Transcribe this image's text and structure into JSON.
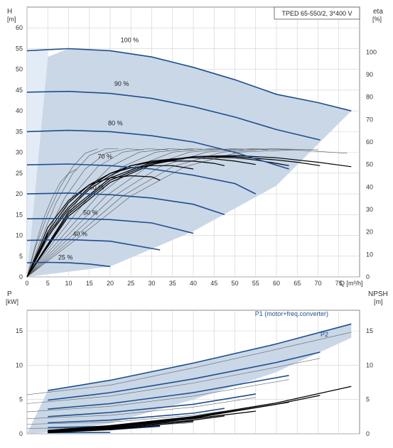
{
  "chart_data": [
    {
      "type": "line",
      "id": "head-chart",
      "title_box": "TPED 65-550/2, 3*400 V",
      "y_left_label": "H",
      "y_left_unit": "[m]",
      "y_right_label": "eta",
      "y_right_unit": "[%]",
      "x_label": "Q [m³/h]",
      "xlim": [
        0,
        80
      ],
      "ylim": [
        0,
        65
      ],
      "y_right_lim": [
        0,
        120
      ],
      "x_ticks": [
        0,
        5,
        10,
        15,
        20,
        25,
        30,
        35,
        40,
        45,
        50,
        55,
        60,
        65,
        70,
        75
      ],
      "y_ticks": [
        0,
        5,
        10,
        15,
        20,
        25,
        30,
        35,
        40,
        45,
        50,
        55,
        60
      ],
      "y_right_ticks": [
        0,
        10,
        20,
        30,
        40,
        50,
        60,
        70,
        80,
        90,
        100
      ],
      "grid": true,
      "colors": {
        "curve": "#1f4e8c",
        "area": "#c9d7e7",
        "area_light": "#e3ecf6",
        "efficiency": "#000000",
        "grid": "#d0d0d0"
      },
      "speed_curves": [
        {
          "label": "100 %",
          "label_q": 22.5,
          "label_h": 56.5,
          "q": [
            0,
            10,
            20,
            30,
            40,
            50,
            60,
            70,
            78
          ],
          "h": [
            54.5,
            55,
            54.5,
            53,
            50.5,
            47.5,
            44,
            42,
            40
          ]
        },
        {
          "label": "90 %",
          "label_q": 21,
          "label_h": 46,
          "q": [
            0,
            10,
            20,
            30,
            40,
            50,
            60,
            70.5
          ],
          "h": [
            44.5,
            44.7,
            44.2,
            43,
            41,
            38.5,
            35.5,
            33
          ]
        },
        {
          "label": "80 %",
          "label_q": 19.5,
          "label_h": 36.5,
          "q": [
            0,
            10,
            20,
            30,
            40,
            50,
            63
          ],
          "h": [
            35,
            35.3,
            35,
            34,
            32.5,
            30,
            26
          ]
        },
        {
          "label": "70 %",
          "label_q": 17,
          "label_h": 28.5,
          "q": [
            0,
            10,
            20,
            30,
            40,
            50,
            55
          ],
          "h": [
            27,
            27.2,
            26.8,
            26,
            24.5,
            22.5,
            20
          ]
        },
        {
          "label": "60 %",
          "label_q": 15,
          "label_h": 21,
          "q": [
            0,
            10,
            20,
            30,
            40,
            47.5
          ],
          "h": [
            20,
            20.2,
            19.8,
            19,
            17.5,
            15
          ]
        },
        {
          "label": "50 %",
          "label_q": 13.5,
          "label_h": 15,
          "q": [
            0,
            10,
            20,
            30,
            40
          ],
          "h": [
            14,
            14.1,
            13.8,
            13,
            10.5
          ]
        },
        {
          "label": "40 %",
          "label_q": 11,
          "label_h": 9.8,
          "q": [
            0,
            10,
            20,
            32
          ],
          "h": [
            8.8,
            9,
            8.6,
            6.5
          ]
        },
        {
          "label": "25 %",
          "label_q": 7.5,
          "label_h": 4.2,
          "q": [
            0,
            5,
            10,
            15,
            20
          ],
          "h": [
            3.4,
            3.5,
            3.4,
            3.1,
            2.5
          ]
        }
      ],
      "efficiency_curves": [
        {
          "q": [
            0,
            5,
            10,
            15,
            20,
            25,
            30,
            32
          ],
          "eta": [
            0,
            22,
            34,
            41,
            44,
            45,
            44.5,
            43
          ]
        },
        {
          "q": [
            0,
            5,
            10,
            15,
            20,
            25,
            30,
            35,
            40
          ],
          "eta": [
            0,
            20,
            33,
            41,
            46,
            48.5,
            49.5,
            49.5,
            48
          ]
        },
        {
          "q": [
            0,
            5,
            10,
            15,
            20,
            25,
            30,
            35,
            40,
            45,
            47.5
          ],
          "eta": [
            0,
            19,
            31,
            40,
            46,
            49.5,
            51,
            51.5,
            51.5,
            50.5,
            49.5
          ]
        },
        {
          "q": [
            0,
            5,
            10,
            15,
            20,
            25,
            30,
            35,
            40,
            45,
            50,
            55
          ],
          "eta": [
            0,
            18,
            30,
            39,
            45,
            49.5,
            51.5,
            52.5,
            53,
            52.5,
            51.5,
            50
          ]
        },
        {
          "q": [
            0,
            10,
            20,
            30,
            40,
            50,
            55,
            60,
            63
          ],
          "eta": [
            0,
            29,
            44,
            51,
            53.5,
            53,
            52,
            50.5,
            49.5
          ]
        },
        {
          "q": [
            0,
            10,
            20,
            30,
            40,
            50,
            60,
            65,
            70.5
          ],
          "eta": [
            0,
            28,
            43,
            50.5,
            53.5,
            53.5,
            52,
            51,
            49.5
          ]
        },
        {
          "q": [
            0,
            10,
            20,
            30,
            40,
            50,
            60,
            70,
            78
          ],
          "eta": [
            0,
            27,
            42,
            50,
            53.5,
            54,
            53,
            51,
            49
          ]
        }
      ],
      "system_curves": [
        {
          "q": [
            0,
            2,
            4,
            6,
            8,
            10,
            12
          ],
          "eta": [
            0,
            14,
            26,
            35,
            42,
            46,
            48
          ]
        },
        {
          "q": [
            0,
            2,
            5,
            8,
            11,
            14,
            17
          ],
          "eta": [
            0,
            13,
            28,
            40,
            49,
            55,
            57
          ]
        },
        {
          "q": [
            0,
            3,
            7,
            11,
            15,
            19,
            22
          ],
          "eta": [
            0,
            15,
            33,
            46,
            54,
            57,
            57
          ]
        },
        {
          "q": [
            0,
            4,
            9,
            14,
            19,
            24,
            28
          ],
          "eta": [
            0,
            16,
            35,
            48,
            55,
            57,
            56.5
          ]
        },
        {
          "q": [
            0,
            5,
            11,
            17,
            23,
            29,
            34
          ],
          "eta": [
            0,
            17,
            36,
            49,
            55.5,
            57,
            56.5
          ]
        },
        {
          "q": [
            0,
            6,
            13,
            20,
            27,
            34,
            40
          ],
          "eta": [
            0,
            17,
            36,
            49,
            55.5,
            57,
            56.5
          ]
        },
        {
          "q": [
            0,
            7,
            15,
            23,
            31,
            39,
            46
          ],
          "eta": [
            0,
            17,
            36,
            49,
            55.5,
            57,
            56.5
          ]
        },
        {
          "q": [
            0,
            8,
            17,
            26,
            35,
            44,
            52
          ],
          "eta": [
            0,
            17,
            36,
            49,
            55.5,
            57,
            56.5
          ]
        },
        {
          "q": [
            0,
            9,
            19,
            29,
            39,
            49,
            58
          ],
          "eta": [
            0,
            17,
            36,
            49,
            55.5,
            57,
            56.5
          ]
        },
        {
          "q": [
            0,
            10,
            21,
            32,
            43,
            54,
            64
          ],
          "eta": [
            0,
            17,
            36,
            49,
            55.5,
            57,
            56.5
          ]
        },
        {
          "q": [
            0,
            11,
            23,
            35,
            47,
            59,
            70
          ],
          "eta": [
            0,
            17,
            36,
            49,
            55.5,
            57,
            56.5
          ]
        },
        {
          "q": [
            0,
            12,
            25,
            38,
            51,
            64,
            77
          ],
          "eta": [
            0,
            17,
            36,
            49,
            55.5,
            56.5,
            55
          ]
        }
      ],
      "shaded_region": {
        "q": [
          0,
          5,
          5,
          20,
          40,
          60,
          78
        ],
        "h": [
          0,
          53,
          55,
          2.5,
          11,
          22,
          40
        ]
      }
    },
    {
      "type": "line",
      "id": "power-chart",
      "y_left_label": "P",
      "y_left_unit": "[kW]",
      "y_right_label": "NPSH",
      "y_right_unit": "[m]",
      "xlim": [
        0,
        80
      ],
      "ylim": [
        0,
        18
      ],
      "y_right_lim": [
        0,
        18
      ],
      "y_ticks": [
        0,
        5,
        10,
        15
      ],
      "y_right_ticks": [
        0,
        5,
        10,
        15
      ],
      "legend_p1": "P1 (motor+freq.converter)",
      "legend_p2": "P2",
      "grid": true,
      "p1_curves": [
        {
          "q": [
            5,
            20,
            40,
            60,
            78
          ],
          "p": [
            6.3,
            7.8,
            10.3,
            13.1,
            16
          ]
        },
        {
          "q": [
            5,
            20,
            40,
            60,
            70.5
          ],
          "p": [
            4.9,
            6,
            8,
            10.4,
            11.9
          ]
        },
        {
          "q": [
            5,
            20,
            40,
            63
          ],
          "p": [
            3.6,
            4.4,
            6,
            8.5
          ]
        },
        {
          "q": [
            5,
            20,
            40,
            55
          ],
          "p": [
            2.5,
            3.1,
            4.3,
            5.8
          ]
        },
        {
          "q": [
            5,
            20,
            40,
            47.5
          ],
          "p": [
            1.6,
            2,
            3,
            3.7
          ]
        },
        {
          "q": [
            5,
            20,
            40
          ],
          "p": [
            0.9,
            1.1,
            1.9
          ]
        },
        {
          "q": [
            5,
            20,
            32
          ],
          "p": [
            0.5,
            0.6,
            1.1
          ]
        },
        {
          "q": [
            5,
            20
          ],
          "p": [
            0.15,
            0.2
          ]
        }
      ],
      "p2_curves": [
        {
          "q": [
            0,
            20,
            40,
            60,
            78
          ],
          "p": [
            5.7,
            7.1,
            9.6,
            12.3,
            14.8
          ]
        },
        {
          "q": [
            0,
            20,
            40,
            60,
            70.5
          ],
          "p": [
            4.4,
            5.5,
            7.4,
            9.7,
            11
          ]
        },
        {
          "q": [
            0,
            20,
            40,
            63
          ],
          "p": [
            3.2,
            4,
            5.5,
            7.9
          ]
        },
        {
          "q": [
            0,
            20,
            40,
            55
          ],
          "p": [
            2.2,
            2.7,
            3.9,
            5.3
          ]
        },
        {
          "q": [
            0,
            20,
            40,
            47.5
          ],
          "p": [
            1.4,
            1.7,
            2.7,
            3.3
          ]
        },
        {
          "q": [
            0,
            20,
            40
          ],
          "p": [
            0.8,
            0.9,
            1.6
          ]
        }
      ],
      "npsh_curves": [
        {
          "q": [
            5,
            20,
            40,
            60,
            78
          ],
          "npsh": [
            0.5,
            1.2,
            2.5,
            4.5,
            6.9
          ]
        },
        {
          "q": [
            5,
            20,
            40,
            60,
            70.5
          ],
          "npsh": [
            0.4,
            1.1,
            2.4,
            4.3,
            5.6
          ]
        },
        {
          "q": [
            5,
            20,
            40,
            63
          ],
          "npsh": [
            0.35,
            1,
            2.3,
            4.6
          ]
        },
        {
          "q": [
            5,
            20,
            40,
            55
          ],
          "npsh": [
            0.3,
            0.9,
            2.2,
            3.3
          ]
        },
        {
          "q": [
            5,
            20,
            40,
            47.5
          ],
          "npsh": [
            0.25,
            0.8,
            2,
            2.6
          ]
        },
        {
          "q": [
            5,
            20,
            40
          ],
          "npsh": [
            0.2,
            0.7,
            1.8
          ]
        },
        {
          "q": [
            5,
            20,
            32
          ],
          "npsh": [
            0.15,
            0.6,
            1.2
          ]
        }
      ],
      "shaded_region": {
        "q": [
          0,
          5,
          20,
          40,
          60,
          78,
          78,
          60,
          40,
          20,
          5,
          0
        ],
        "p": [
          0,
          6.3,
          7.8,
          10.3,
          13.1,
          16,
          14,
          9,
          5,
          1.5,
          0.2,
          0
        ]
      }
    }
  ]
}
